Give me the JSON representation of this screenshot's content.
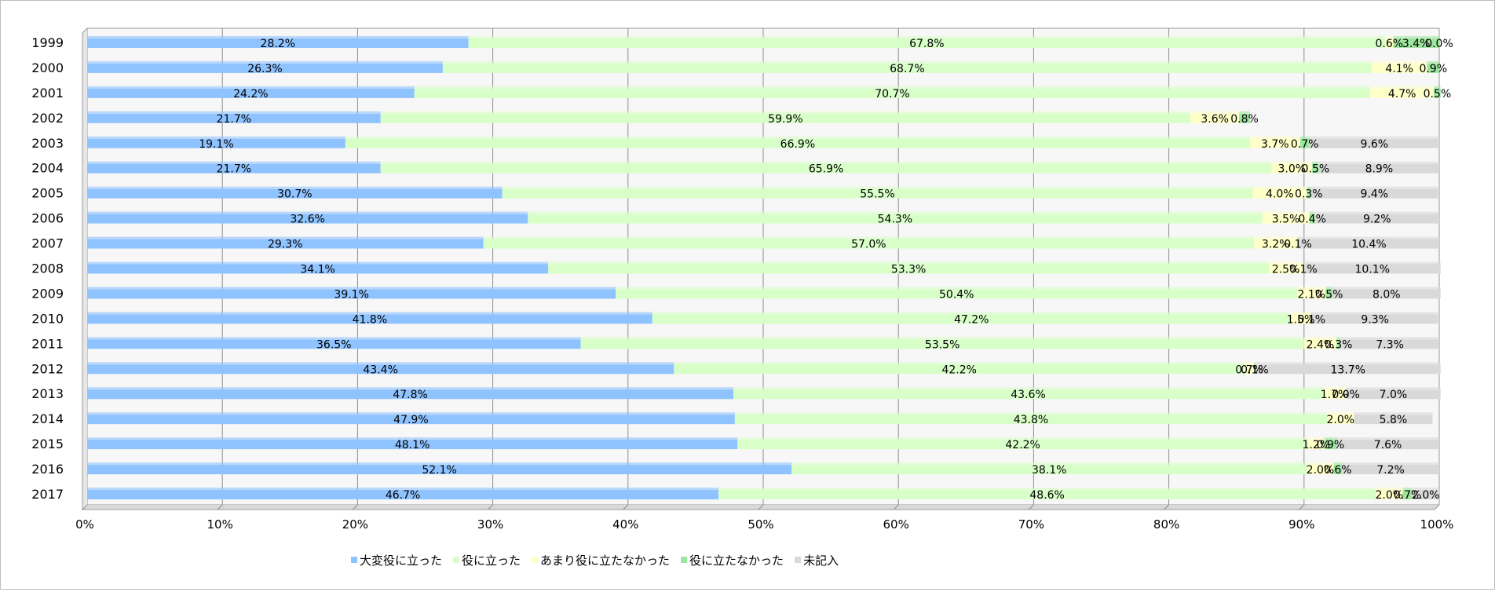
{
  "chart_data": {
    "type": "bar",
    "orientation": "horizontal",
    "stacked": true,
    "percent": true,
    "categories": [
      "1999",
      "2000",
      "2001",
      "2002",
      "2003",
      "2004",
      "2005",
      "2006",
      "2007",
      "2008",
      "2009",
      "2010",
      "2011",
      "2012",
      "2013",
      "2014",
      "2015",
      "2016",
      "2017"
    ],
    "series": [
      {
        "name": "大変役に立った",
        "color": "#8fc3ff",
        "values": [
          28.2,
          26.3,
          24.2,
          21.7,
          19.1,
          21.7,
          30.7,
          32.6,
          29.3,
          34.1,
          39.1,
          41.8,
          36.5,
          43.4,
          47.8,
          47.9,
          48.1,
          52.1,
          46.7
        ]
      },
      {
        "name": "役に立った",
        "color": "#d8ffc8",
        "values": [
          67.8,
          68.7,
          70.7,
          59.9,
          66.9,
          65.9,
          55.5,
          54.3,
          57.0,
          53.3,
          50.4,
          47.2,
          53.5,
          42.2,
          43.6,
          43.8,
          42.2,
          38.1,
          48.6
        ]
      },
      {
        "name": "あまり役に立たなかった",
        "color": "#ffffc8",
        "values": [
          0.6,
          4.1,
          4.7,
          3.6,
          3.7,
          3.0,
          4.0,
          3.5,
          3.2,
          2.5,
          2.1,
          1.5,
          2.4,
          0.7,
          1.7,
          2.0,
          1.2,
          2.0,
          2.0
        ]
      },
      {
        "name": "役に立たなかった",
        "color": "#9ee6a0",
        "values": [
          3.4,
          0.9,
          0.5,
          0.8,
          0.7,
          0.5,
          0.3,
          0.4,
          0.1,
          0.1,
          0.5,
          0.1,
          0.3,
          0.1,
          0.0,
          null,
          0.9,
          0.6,
          0.7
        ]
      },
      {
        "name": "未記入",
        "color": "#d9d9d9",
        "values": [
          0.0,
          null,
          null,
          null,
          9.6,
          8.9,
          9.4,
          9.2,
          10.4,
          10.1,
          8.0,
          9.3,
          7.3,
          13.7,
          7.0,
          5.8,
          7.6,
          7.2,
          2.0
        ]
      }
    ],
    "xlim": [
      0,
      100
    ],
    "xticks": [
      "0%",
      "10%",
      "20%",
      "30%",
      "40%",
      "50%",
      "60%",
      "70%",
      "80%",
      "90%",
      "100%"
    ],
    "grid": true,
    "legend": "bottom",
    "title": "",
    "xlabel": "",
    "ylabel": ""
  }
}
